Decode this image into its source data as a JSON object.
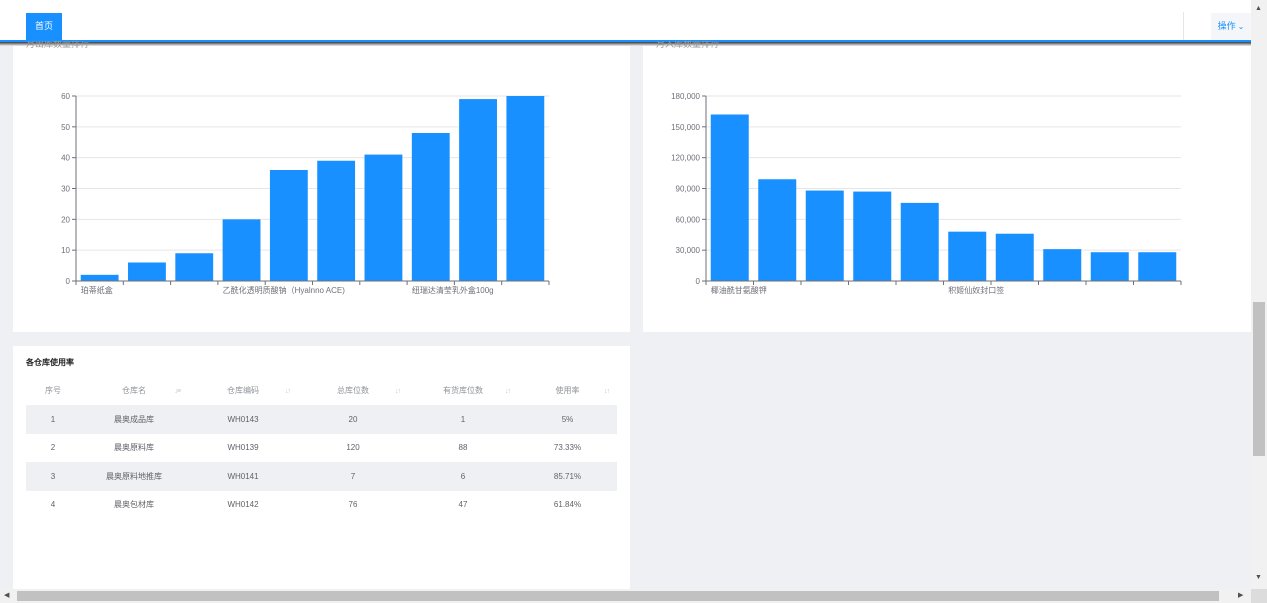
{
  "header": {
    "tab_home_label": "首页",
    "ops_label": "操作",
    "ops_icon": "chevron-down-icon"
  },
  "charts": {
    "left": {
      "cut_title": "月出库数量排行",
      "chart_data": {
        "type": "bar",
        "categories": [
          "珀蒂纸盒",
          "",
          "",
          "乙酰化透明质酸钠（Hyalnno ACE)",
          "",
          "",
          "",
          "纽瑞达清莹乳外盒100g",
          "",
          ""
        ],
        "values": [
          2,
          6,
          9,
          20,
          36,
          39,
          41,
          48,
          59,
          60
        ],
        "ylim": [
          0,
          60
        ],
        "yticks": [
          "0",
          "10",
          "20",
          "30",
          "40",
          "50",
          "60"
        ],
        "grid": true,
        "color": "#1890ff"
      }
    },
    "right": {
      "cut_title": "月入库数量排行",
      "chart_data": {
        "type": "bar",
        "categories": [
          "椰油酰甘氨酸钾",
          "",
          "",
          "",
          "",
          "积姬仙奴封口签",
          "",
          "",
          "",
          ""
        ],
        "values": [
          162000,
          99000,
          88000,
          87000,
          76000,
          48000,
          46000,
          31000,
          28000,
          28000
        ],
        "ylim": [
          0,
          180000
        ],
        "yticks": [
          "0",
          "30,000",
          "60,000",
          "90,000",
          "120,000",
          "150,000",
          "180,000"
        ],
        "grid": true,
        "color": "#1890ff"
      }
    }
  },
  "usage": {
    "title": "各仓库使用率",
    "columns": [
      "序号",
      "仓库名",
      "仓库编码",
      "总库位数",
      "有货库位数",
      "使用率"
    ],
    "sort_icon": "sort-icon",
    "rows": [
      [
        "1",
        "晨奥成品库",
        "WH0143",
        "20",
        "1",
        "5%"
      ],
      [
        "2",
        "晨奥原料库",
        "WH0139",
        "120",
        "88",
        "73.33%"
      ],
      [
        "3",
        "晨奥原料地推库",
        "WH0141",
        "7",
        "6",
        "85.71%"
      ],
      [
        "4",
        "晨奥包材库",
        "WH0142",
        "76",
        "47",
        "61.84%"
      ]
    ]
  }
}
